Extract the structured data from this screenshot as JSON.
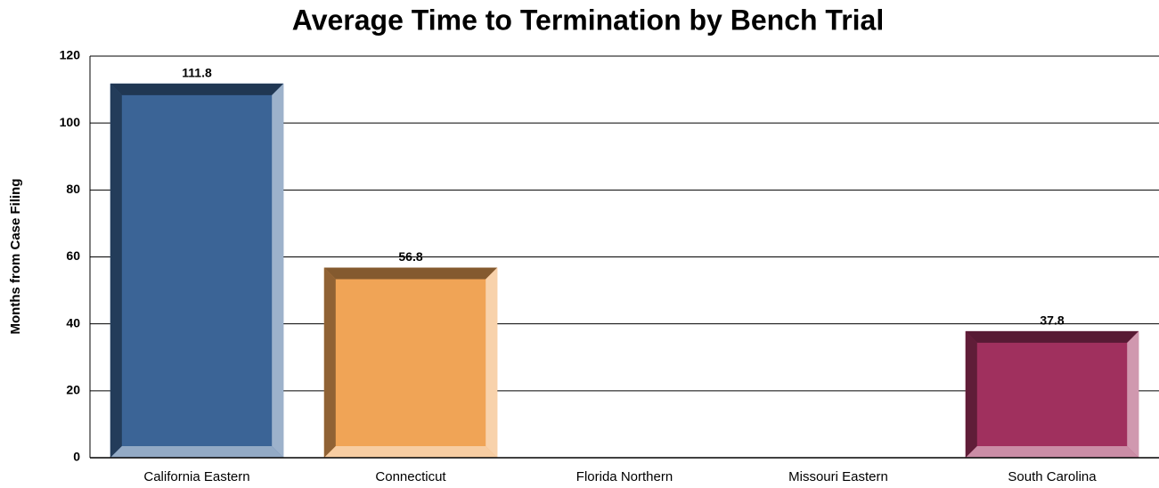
{
  "chart_data": {
    "type": "bar",
    "title": "Average Time to Termination by Bench Trial",
    "y_label": "Months from Case Filing",
    "categories": [
      "California Eastern",
      "Connecticut",
      "Florida Northern",
      "Missouri Eastern",
      "South Carolina"
    ],
    "values": [
      111.8,
      56.8,
      null,
      null,
      37.8
    ],
    "colors": [
      "#3b6496",
      "#f0a456",
      null,
      null,
      "#a0305e"
    ],
    "ylim": [
      0,
      120
    ],
    "yticks": [
      0,
      20,
      40,
      60,
      80,
      100,
      120
    ],
    "grid": true
  }
}
